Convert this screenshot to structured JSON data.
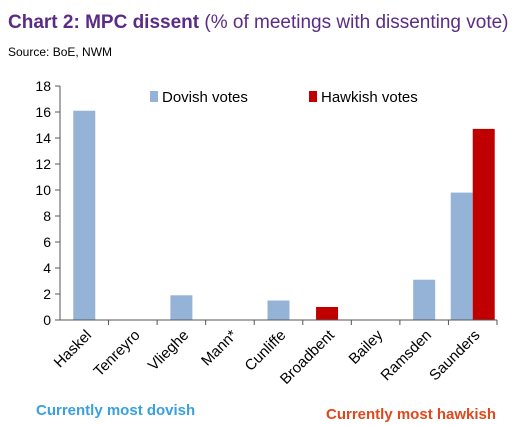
{
  "header": {
    "title_bold": "Chart 2: MPC dissent",
    "title_rest": " (% of meetings with dissenting vote)",
    "source": "Source:  BoE, NWM"
  },
  "notes": {
    "left": "Currently most dovish",
    "right": "Currently most hawkish"
  },
  "chart_data": {
    "type": "bar",
    "categories": [
      "Haskel",
      "Tenreyro",
      "Vlieghe",
      "Mann*",
      "Cunliffe",
      "Broadbent",
      "Bailey",
      "Ramsden",
      "Saunders"
    ],
    "series": [
      {
        "name": "Dovish votes",
        "color": "#95b3d7",
        "values": [
          16.1,
          0,
          1.9,
          0,
          1.5,
          0,
          0,
          3.1,
          9.8
        ]
      },
      {
        "name": "Hawkish votes",
        "color": "#c00000",
        "values": [
          0,
          0,
          0,
          0,
          0,
          1.0,
          0,
          0,
          14.7
        ]
      }
    ],
    "ylim": [
      0,
      18
    ],
    "yticks": [
      "0",
      "2",
      "4",
      "6",
      "8",
      "10",
      "12",
      "14",
      "16",
      "18"
    ],
    "grid": false,
    "legend": "top"
  }
}
